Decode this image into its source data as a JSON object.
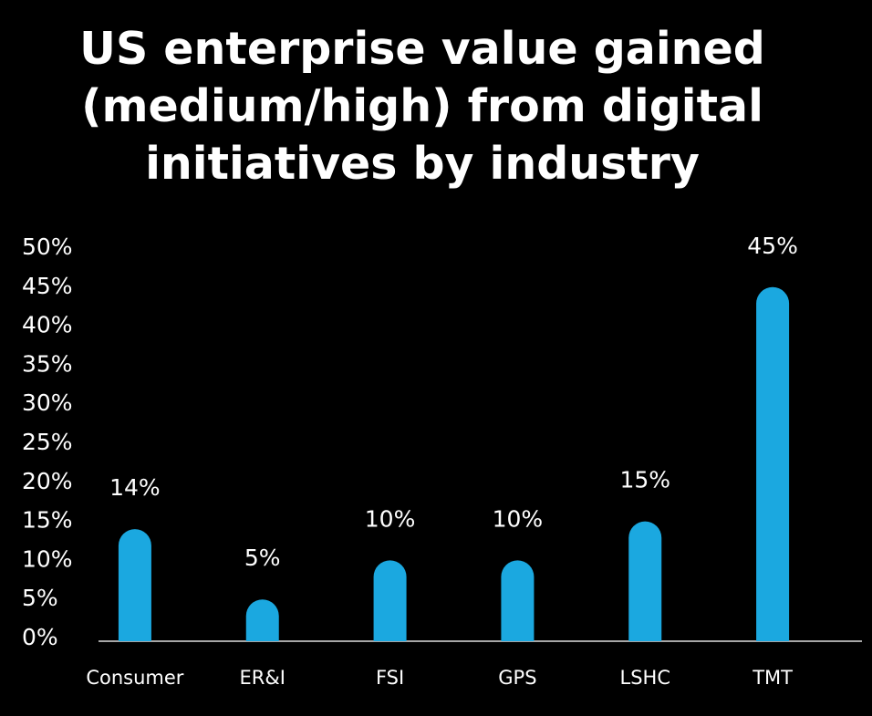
{
  "chart_data": {
    "type": "bar",
    "title": "US enterprise value gained (medium/high) from digital initiatives by industry",
    "categories": [
      "Consumer",
      "ER&I",
      "FSI",
      "GPS",
      "LSHC",
      "TMT"
    ],
    "values": [
      14,
      5,
      10,
      10,
      15,
      45
    ],
    "value_labels": [
      "14%",
      "5%",
      "10%",
      "10%",
      "15%",
      "45%"
    ],
    "color": "#1ba8e0",
    "ylim": [
      0,
      50
    ],
    "yticks": [
      {
        "value": 0,
        "label": "0%"
      },
      {
        "value": 5,
        "label": "5%"
      },
      {
        "value": 10,
        "label": "10%"
      },
      {
        "value": 15,
        "label": "15%"
      },
      {
        "value": 20,
        "label": "20%"
      },
      {
        "value": 25,
        "label": "25%"
      },
      {
        "value": 30,
        "label": "30%"
      },
      {
        "value": 35,
        "label": "35%"
      },
      {
        "value": 40,
        "label": "40%"
      },
      {
        "value": 45,
        "label": "45%"
      },
      {
        "value": 50,
        "label": "50%"
      }
    ],
    "grid": false
  }
}
